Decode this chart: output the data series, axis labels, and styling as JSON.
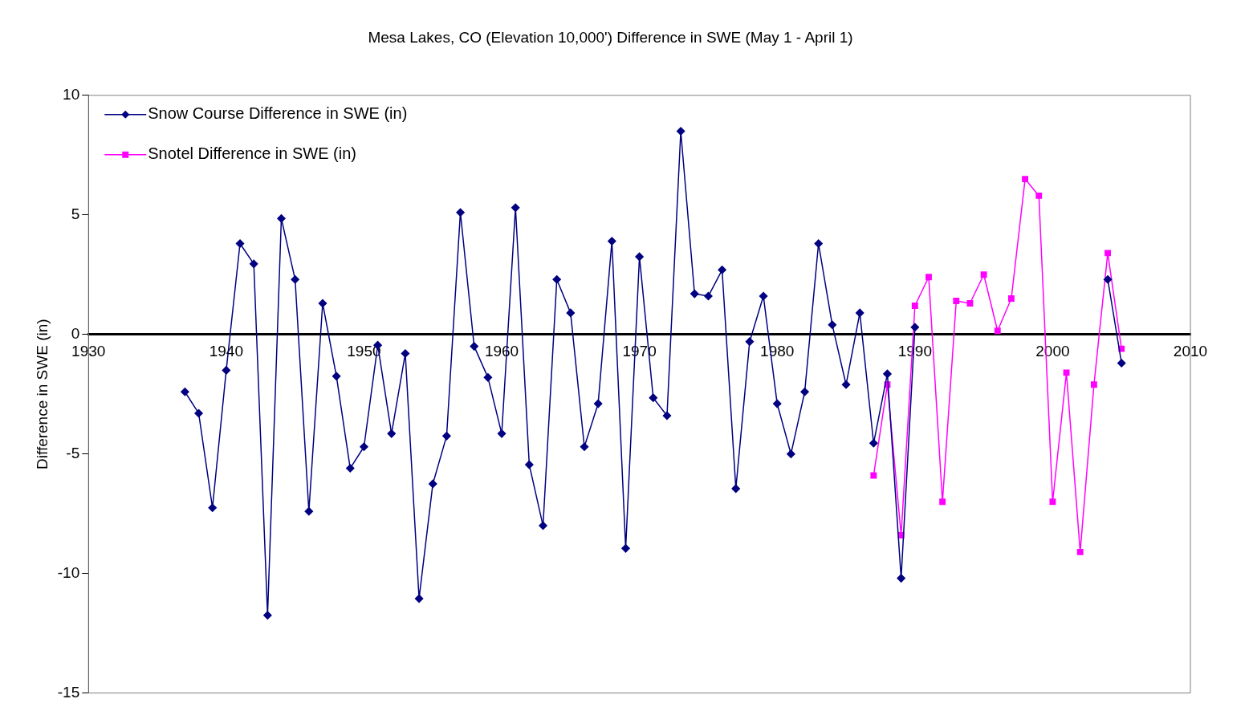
{
  "chart_data": {
    "type": "line",
    "title": "Mesa Lakes, CO (Elevation 10,000') Difference in SWE (May 1 - April 1)",
    "ylabel": "Difference in SWE (in)",
    "series": [
      {
        "name": "Snow Course Difference in SWE (in)",
        "color": "#000080",
        "marker": "diamond",
        "x": [
          1937,
          1938,
          1939,
          1940,
          1941,
          1942,
          1943,
          1944,
          1945,
          1946,
          1947,
          1948,
          1949,
          1950,
          1951,
          1952,
          1953,
          1954,
          1955,
          1956,
          1957,
          1958,
          1959,
          1960,
          1961,
          1962,
          1963,
          1964,
          1965,
          1966,
          1967,
          1968,
          1969,
          1970,
          1971,
          1972,
          1973,
          1974,
          1975,
          1976,
          1977,
          1978,
          1979,
          1980,
          1981,
          1982,
          1983,
          1984,
          1985,
          1986,
          1987,
          1988,
          1989,
          1990,
          1991,
          1992,
          1993,
          1994,
          1995,
          1996,
          1997,
          1998,
          1999,
          2000,
          2001,
          2002,
          2003,
          2004,
          2005
        ],
        "values": [
          -2.4,
          -3.3,
          -7.25,
          -1.5,
          3.8,
          2.95,
          -11.75,
          4.85,
          2.3,
          -7.4,
          1.3,
          -1.75,
          -5.6,
          -4.7,
          -0.45,
          -4.15,
          -0.8,
          -11.05,
          -6.25,
          -4.25,
          5.1,
          -0.5,
          -1.8,
          -4.15,
          5.3,
          -5.45,
          -8.0,
          2.3,
          0.9,
          -4.7,
          -2.9,
          3.9,
          -8.95,
          3.25,
          -2.65,
          -3.4,
          8.5,
          1.7,
          1.6,
          2.7,
          -6.45,
          -0.3,
          1.6,
          -2.9,
          -5.0,
          -2.4,
          3.8,
          0.4,
          -2.1,
          0.9,
          -4.55,
          -1.65,
          -10.2,
          0.3,
          null,
          null,
          null,
          null,
          null,
          null,
          null,
          null,
          null,
          null,
          null,
          null,
          null,
          2.3,
          -1.2
        ]
      },
      {
        "name": "Snotel Difference in SWE (in)",
        "color": "#ff00ff",
        "marker": "square",
        "x": [
          1987,
          1988,
          1989,
          1990,
          1991,
          1992,
          1993,
          1994,
          1995,
          1996,
          1997,
          1998,
          1999,
          2000,
          2001,
          2002,
          2003,
          2004,
          2005
        ],
        "values": [
          -5.9,
          -2.1,
          -8.4,
          1.2,
          2.4,
          -7.0,
          1.4,
          1.3,
          2.5,
          0.15,
          1.5,
          6.5,
          5.8,
          -7.0,
          -1.6,
          -9.1,
          -2.1,
          3.4,
          -0.6
        ]
      }
    ],
    "xlim": [
      1930,
      2010
    ],
    "xticks": [
      1930,
      1940,
      1950,
      1960,
      1970,
      1980,
      1990,
      2000,
      2010
    ],
    "ylim": [
      -15,
      10
    ],
    "yticks": [
      -15,
      -10,
      -5,
      0,
      5,
      10
    ],
    "grid": false,
    "legend": "top left",
    "line_style": "solid"
  }
}
